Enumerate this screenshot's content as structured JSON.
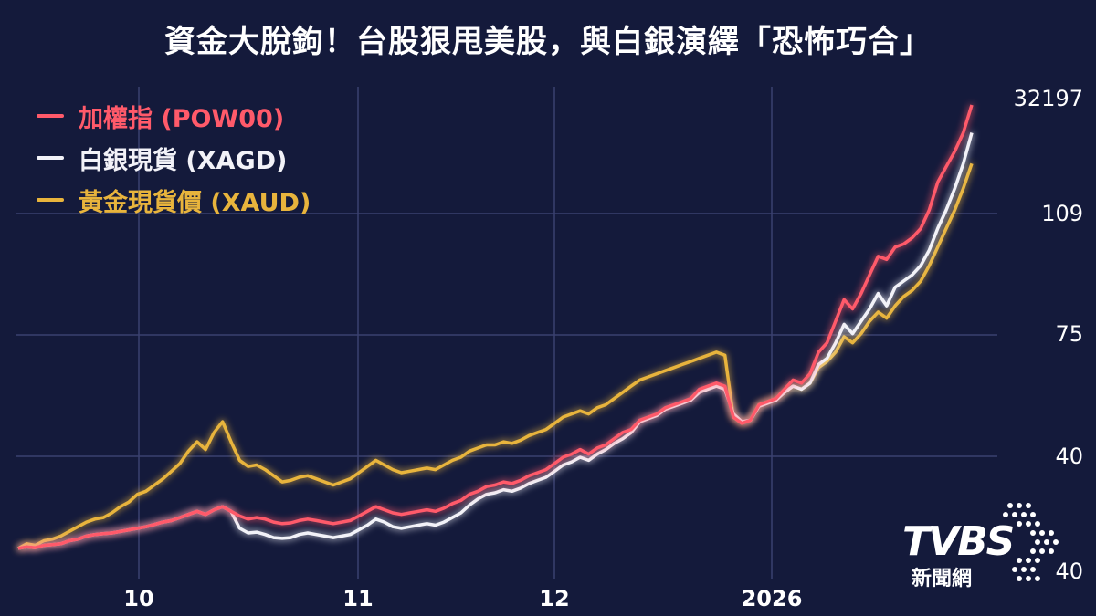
{
  "title": "資金大脫鉤！台股狠甩美股，與白銀演繹「恐怖巧合」",
  "logo": {
    "brand": "TVBS",
    "channel": "新聞網"
  },
  "colors": {
    "background": "#141a3b",
    "grid": "#3a4170",
    "taiex": "#ff5a6a",
    "silver": "#f2f2f8",
    "gold": "#e8b43c"
  },
  "chart_data": {
    "type": "line",
    "title": "資金大脫鉤！台股狠甩美股，與白銀演繹「恐怖巧合」",
    "x_ticks": [
      "10",
      "11",
      "12",
      "2026"
    ],
    "y_tick_labels": [
      "32197",
      "109",
      "75",
      "40",
      "40"
    ],
    "legend_position": "top-left",
    "grid": true,
    "series": [
      {
        "name": "加權指 (POW00)",
        "color": "#ff5a6a",
        "values": [
          3,
          4,
          3.5,
          5,
          5.5,
          6,
          8,
          9,
          11,
          12,
          12.5,
          13,
          14,
          15,
          16,
          17,
          18.5,
          20,
          21,
          23,
          25,
          27,
          25,
          28,
          30,
          27,
          24,
          22,
          23,
          22,
          20,
          19,
          19.5,
          21,
          22,
          21,
          20,
          19,
          20,
          21,
          24,
          27,
          30,
          28,
          26,
          25,
          26,
          27,
          28,
          27,
          29,
          32,
          34,
          38,
          40,
          43,
          44,
          46,
          45,
          47,
          50,
          52,
          54,
          58,
          62,
          64,
          67,
          64,
          68,
          70,
          74,
          78,
          80,
          86,
          88,
          90,
          94,
          96,
          98,
          100,
          106,
          108,
          110,
          108,
          88,
          84,
          86,
          96,
          98,
          100,
          106,
          112,
          110,
          116,
          130,
          136,
          150,
          164,
          158,
          168,
          180,
          192,
          190,
          198,
          200,
          204,
          210,
          222,
          240,
          250,
          260,
          272,
          290
        ]
      },
      {
        "name": "白銀現貨 (XAGD)",
        "color": "#f2f2f8",
        "values": [
          3,
          4,
          3.5,
          5,
          5.5,
          6,
          8,
          9,
          11,
          12,
          12.5,
          13,
          14,
          15,
          16,
          17,
          18.5,
          20,
          21,
          23,
          25,
          27,
          25,
          28,
          30,
          27,
          16,
          13,
          13.5,
          12,
          10,
          9.5,
          10,
          12,
          13,
          12,
          11,
          10,
          11,
          12,
          15,
          18,
          22,
          20,
          17,
          16,
          17,
          18,
          19,
          18,
          20,
          23,
          26,
          31,
          35,
          38,
          39,
          41,
          40,
          42,
          45,
          47,
          49,
          53,
          57,
          59,
          62,
          60,
          64,
          67,
          71,
          74,
          78,
          85,
          87,
          89,
          93,
          95,
          97,
          99,
          104,
          106,
          108,
          106,
          90,
          85,
          86,
          95,
          97,
          99,
          104,
          108,
          106,
          110,
          122,
          126,
          136,
          148,
          142,
          150,
          158,
          168,
          160,
          172,
          176,
          180,
          186,
          196,
          210,
          222,
          236,
          252,
          272
        ]
      },
      {
        "name": "黃金現貨價 (XAUD)",
        "color": "#e8b43c",
        "values": [
          3,
          6,
          5,
          8,
          9,
          11,
          14,
          17,
          20,
          22,
          23,
          26,
          30,
          33,
          38,
          40,
          44,
          48,
          53,
          58,
          66,
          72,
          67,
          78,
          85,
          72,
          60,
          56,
          57,
          54,
          50,
          46,
          47,
          49,
          50,
          48,
          46,
          44,
          46,
          48,
          52,
          56,
          60,
          57,
          54,
          52,
          53,
          54,
          55,
          54,
          57,
          60,
          62,
          66,
          68,
          70,
          70,
          72,
          71,
          73,
          76,
          78,
          80,
          84,
          88,
          90,
          92,
          90,
          94,
          96,
          100,
          104,
          108,
          112,
          114,
          116,
          118,
          120,
          122,
          124,
          126,
          128,
          130,
          128,
          88,
          84,
          86,
          96,
          98,
          100,
          104,
          108,
          106,
          110,
          120,
          124,
          130,
          140,
          136,
          142,
          150,
          156,
          152,
          160,
          166,
          170,
          176,
          186,
          198,
          210,
          222,
          236,
          252
        ]
      }
    ]
  }
}
